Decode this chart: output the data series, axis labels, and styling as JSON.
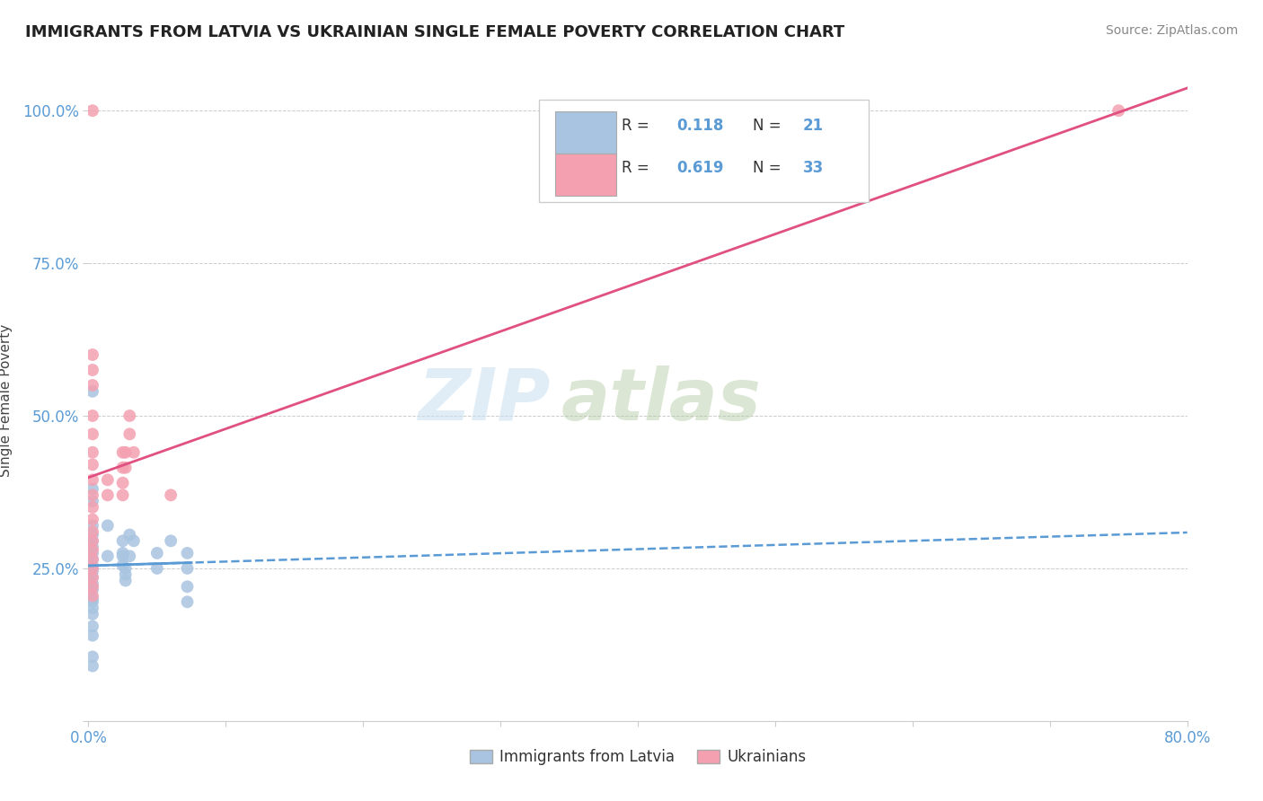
{
  "title": "IMMIGRANTS FROM LATVIA VS UKRAINIAN SINGLE FEMALE POVERTY CORRELATION CHART",
  "source": "Source: ZipAtlas.com",
  "ylabel": "Single Female Poverty",
  "xlim": [
    0.0,
    0.8
  ],
  "ylim": [
    0.0,
    1.05
  ],
  "x_ticks": [
    0.0,
    0.8
  ],
  "x_tick_labels": [
    "0.0%",
    "80.0%"
  ],
  "y_ticks": [
    0.0,
    0.25,
    0.5,
    0.75,
    1.0
  ],
  "y_tick_labels": [
    "",
    "25.0%",
    "50.0%",
    "75.0%",
    "100.0%"
  ],
  "watermark_zip": "ZIP",
  "watermark_atlas": "atlas",
  "latvia_color": "#a8c4e0",
  "ukraine_color": "#f4a0b0",
  "latvia_line_color": "#5b9bd5",
  "ukraine_line_color": "#e05080",
  "latvia_scatter": [
    [
      0.003,
      0.54
    ],
    [
      0.003,
      0.38
    ],
    [
      0.003,
      0.36
    ],
    [
      0.003,
      0.32
    ],
    [
      0.003,
      0.305
    ],
    [
      0.003,
      0.295
    ],
    [
      0.003,
      0.285
    ],
    [
      0.003,
      0.275
    ],
    [
      0.003,
      0.265
    ],
    [
      0.003,
      0.255
    ],
    [
      0.003,
      0.245
    ],
    [
      0.003,
      0.235
    ],
    [
      0.003,
      0.225
    ],
    [
      0.003,
      0.215
    ],
    [
      0.003,
      0.2
    ],
    [
      0.003,
      0.195
    ],
    [
      0.003,
      0.185
    ],
    [
      0.003,
      0.175
    ],
    [
      0.003,
      0.155
    ],
    [
      0.003,
      0.14
    ],
    [
      0.003,
      0.105
    ],
    [
      0.003,
      0.09
    ],
    [
      0.014,
      0.32
    ],
    [
      0.014,
      0.27
    ],
    [
      0.025,
      0.295
    ],
    [
      0.025,
      0.275
    ],
    [
      0.025,
      0.27
    ],
    [
      0.025,
      0.255
    ],
    [
      0.027,
      0.25
    ],
    [
      0.027,
      0.24
    ],
    [
      0.027,
      0.23
    ],
    [
      0.03,
      0.305
    ],
    [
      0.03,
      0.27
    ],
    [
      0.033,
      0.295
    ],
    [
      0.05,
      0.275
    ],
    [
      0.05,
      0.25
    ],
    [
      0.06,
      0.295
    ],
    [
      0.072,
      0.275
    ],
    [
      0.072,
      0.25
    ],
    [
      0.072,
      0.22
    ],
    [
      0.072,
      0.195
    ]
  ],
  "ukraine_scatter": [
    [
      0.003,
      1.0
    ],
    [
      0.003,
      0.6
    ],
    [
      0.003,
      0.575
    ],
    [
      0.003,
      0.55
    ],
    [
      0.003,
      0.5
    ],
    [
      0.003,
      0.47
    ],
    [
      0.003,
      0.44
    ],
    [
      0.003,
      0.42
    ],
    [
      0.003,
      0.395
    ],
    [
      0.003,
      0.37
    ],
    [
      0.003,
      0.35
    ],
    [
      0.003,
      0.33
    ],
    [
      0.003,
      0.31
    ],
    [
      0.003,
      0.295
    ],
    [
      0.003,
      0.28
    ],
    [
      0.003,
      0.265
    ],
    [
      0.003,
      0.25
    ],
    [
      0.003,
      0.235
    ],
    [
      0.003,
      0.22
    ],
    [
      0.003,
      0.205
    ],
    [
      0.014,
      0.395
    ],
    [
      0.014,
      0.37
    ],
    [
      0.025,
      0.44
    ],
    [
      0.025,
      0.415
    ],
    [
      0.025,
      0.39
    ],
    [
      0.025,
      0.37
    ],
    [
      0.027,
      0.44
    ],
    [
      0.027,
      0.415
    ],
    [
      0.03,
      0.5
    ],
    [
      0.03,
      0.47
    ],
    [
      0.033,
      0.44
    ],
    [
      0.06,
      0.37
    ],
    [
      0.75,
      1.0
    ]
  ]
}
